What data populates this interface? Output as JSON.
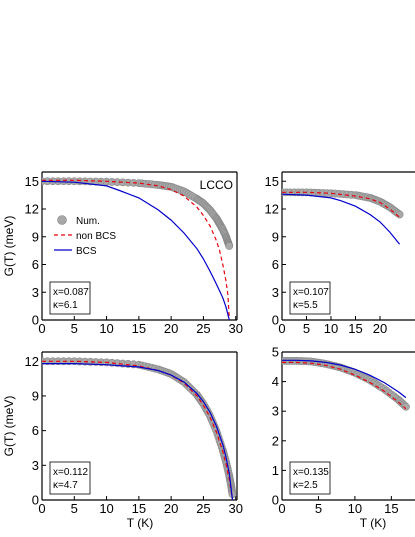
{
  "chart_data": [
    {
      "type": "line",
      "title": "LCCO",
      "xlabel": "",
      "ylabel": "G(T) (meV)",
      "xlim": [
        0,
        30
      ],
      "ylim": [
        0,
        16
      ],
      "x_ticks": [
        "0",
        "5",
        "10",
        "15",
        "20",
        "25",
        "30"
      ],
      "y_ticks": [
        "0",
        "3",
        "6",
        "9",
        "12",
        "15"
      ],
      "legend": {
        "placement": "left",
        "entries": [
          "Num.",
          "non BCS",
          "BCS"
        ]
      },
      "params": [
        "x=0.087",
        "κ=6.1"
      ],
      "series": [
        {
          "name": "Num.",
          "style": "circles",
          "color": "#999999",
          "x": [
            0,
            5,
            10,
            15,
            18,
            20,
            22,
            24,
            25,
            26,
            27,
            27.5,
            28,
            28.5,
            28.8,
            29.0
          ],
          "y": [
            15.0,
            15.0,
            14.95,
            14.8,
            14.6,
            14.4,
            13.9,
            13.1,
            12.6,
            11.9,
            11.0,
            10.4,
            9.8,
            9.0,
            8.4,
            8.0
          ]
        },
        {
          "name": "non BCS",
          "style": "dashed",
          "color": "#e8000b",
          "x": [
            0,
            5,
            10,
            15,
            18,
            20,
            22,
            24,
            25,
            26,
            27,
            27.5,
            28,
            28.5,
            28.8,
            29.0
          ],
          "y": [
            15.1,
            15.1,
            15.0,
            14.8,
            14.5,
            14.1,
            13.4,
            12.2,
            11.3,
            10.2,
            8.6,
            7.5,
            6.0,
            4.2,
            2.6,
            0.0
          ]
        },
        {
          "name": "BCS",
          "style": "solid",
          "color": "#0000cc",
          "x": [
            0,
            5,
            10,
            12,
            15,
            18,
            20,
            22,
            24,
            25,
            26,
            27,
            28,
            28.5,
            29.0
          ],
          "y": [
            15.0,
            14.9,
            14.5,
            14.0,
            13.2,
            11.9,
            10.8,
            9.4,
            7.7,
            6.6,
            5.3,
            3.9,
            2.4,
            1.4,
            0.0
          ]
        }
      ]
    },
    {
      "type": "line",
      "xlabel": "",
      "ylabel": "",
      "xlim": [
        0,
        30
      ],
      "ylim": [
        0,
        16
      ],
      "x_ticks": [
        "0",
        "5",
        "10",
        "15",
        "20"
      ],
      "y_ticks": [
        "0",
        "3",
        "6",
        "9",
        "12",
        "15"
      ],
      "params": [
        "x=0.107",
        "κ=5.5"
      ],
      "series": [
        {
          "style": "circles",
          "color": "#999999",
          "x": [
            0,
            5,
            10,
            15,
            18,
            20,
            22,
            24
          ],
          "y": [
            13.8,
            13.8,
            13.7,
            13.5,
            13.2,
            12.8,
            12.2,
            11.4
          ]
        },
        {
          "style": "dashed",
          "color": "#e8000b",
          "x": [
            0,
            5,
            10,
            15,
            18,
            20,
            22,
            24
          ],
          "y": [
            13.8,
            13.8,
            13.7,
            13.4,
            13.1,
            12.7,
            12.0,
            11.1
          ]
        },
        {
          "style": "solid",
          "color": "#0000cc",
          "x": [
            0,
            5,
            10,
            12,
            15,
            18,
            20,
            22,
            24
          ],
          "y": [
            13.6,
            13.5,
            13.2,
            12.9,
            12.3,
            11.4,
            10.6,
            9.5,
            8.2
          ]
        }
      ]
    },
    {
      "type": "line",
      "xlabel": "T (K)",
      "ylabel": "G(T) (meV)",
      "xlim": [
        0,
        30
      ],
      "ylim": [
        0,
        12.8
      ],
      "x_ticks": [
        "0",
        "5",
        "10",
        "15",
        "20",
        "25",
        "30"
      ],
      "y_ticks": [
        "0",
        "3",
        "6",
        "9",
        "12"
      ],
      "params": [
        "x=0.112",
        "κ=4.7"
      ],
      "series": [
        {
          "style": "circles",
          "color": "#999999",
          "x": [
            0,
            5,
            10,
            15,
            18,
            20,
            22,
            24,
            25,
            26,
            27,
            28,
            28.5,
            29.0,
            29.3,
            29.5
          ],
          "y": [
            12.0,
            12.0,
            11.9,
            11.7,
            11.3,
            10.9,
            10.2,
            9.1,
            8.3,
            7.3,
            6.0,
            4.3,
            3.3,
            2.1,
            1.2,
            0.5
          ]
        },
        {
          "style": "dashed",
          "color": "#e8000b",
          "x": [
            0,
            5,
            10,
            15,
            18,
            20,
            22,
            24,
            25,
            26,
            27,
            28,
            28.5,
            29.0,
            29.5
          ],
          "y": [
            12.0,
            12.0,
            11.9,
            11.6,
            11.2,
            10.8,
            10.1,
            9.0,
            8.2,
            7.2,
            5.9,
            4.2,
            3.1,
            1.8,
            0.0
          ]
        },
        {
          "style": "solid",
          "color": "#0000cc",
          "x": [
            0,
            5,
            10,
            15,
            18,
            20,
            22,
            24,
            25,
            26,
            27,
            28,
            28.5,
            29.0,
            29.5
          ],
          "y": [
            11.8,
            11.8,
            11.7,
            11.5,
            11.2,
            10.8,
            10.2,
            9.2,
            8.5,
            7.6,
            6.4,
            4.8,
            3.7,
            2.3,
            0.0
          ]
        }
      ]
    },
    {
      "type": "line",
      "xlabel": "T (K)",
      "ylabel": "",
      "xlim": [
        0,
        20
      ],
      "ylim": [
        0,
        5
      ],
      "x_ticks": [
        "0",
        "5",
        "10",
        "15"
      ],
      "y_ticks": [
        "0",
        "1",
        "2",
        "3",
        "4",
        "5"
      ],
      "params": [
        "x=0.135",
        "κ=2.5"
      ],
      "series": [
        {
          "style": "circles",
          "color": "#999999",
          "x": [
            0,
            2,
            4,
            6,
            8,
            10,
            12,
            14,
            16,
            17
          ],
          "y": [
            4.7,
            4.7,
            4.68,
            4.6,
            4.48,
            4.3,
            4.06,
            3.75,
            3.38,
            3.15
          ]
        },
        {
          "style": "dashed",
          "color": "#e8000b",
          "x": [
            0,
            2,
            4,
            6,
            8,
            10,
            12,
            14,
            16,
            17
          ],
          "y": [
            4.65,
            4.65,
            4.62,
            4.55,
            4.42,
            4.22,
            3.98,
            3.68,
            3.3,
            3.08
          ]
        },
        {
          "style": "solid",
          "color": "#0000cc",
          "x": [
            0,
            2,
            4,
            6,
            8,
            10,
            12,
            14,
            16,
            17
          ],
          "y": [
            4.72,
            4.72,
            4.7,
            4.65,
            4.56,
            4.42,
            4.22,
            3.97,
            3.65,
            3.46
          ]
        }
      ]
    }
  ]
}
